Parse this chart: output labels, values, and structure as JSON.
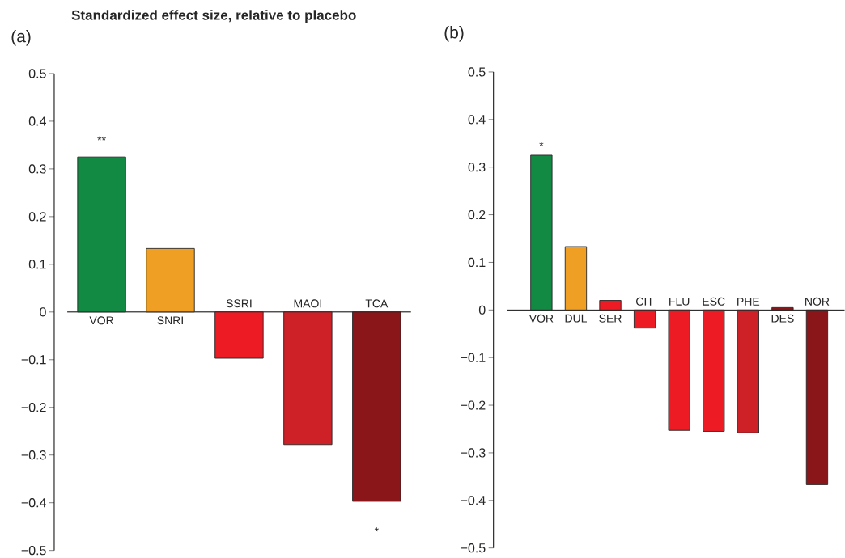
{
  "chart_data": [
    {
      "type": "bar",
      "title": "Standardized effect size, relative to placebo",
      "categories": [
        "VOR",
        "SNRI",
        "SSRI",
        "MAOI",
        "TCA"
      ],
      "values": [
        0.325,
        0.133,
        -0.097,
        -0.278,
        -0.397
      ],
      "colors": [
        "#138a43",
        "#ef9f23",
        "#ed1c24",
        "#cd2027",
        "#8b1619"
      ],
      "ylim": [
        -0.5,
        0.5
      ],
      "yticks": [
        {
          "value": -0.5,
          "label": "−0.5"
        },
        {
          "value": -0.4,
          "label": "−0.4"
        },
        {
          "value": -0.3,
          "label": "−0.3"
        },
        {
          "value": -0.2,
          "label": "−0.2"
        },
        {
          "value": -0.1,
          "label": "−0.1"
        },
        0,
        0.1,
        0.2,
        0.3,
        0.4,
        0.5
      ],
      "annotations": [
        "(a)",
        "**",
        "*"
      ]
    },
    {
      "type": "bar",
      "categories": [
        "VOR",
        "DUL",
        "SER",
        "CIT",
        "FLU",
        "ESC",
        "PHE",
        "DES",
        "NOR"
      ],
      "values": [
        0.325,
        0.133,
        0.02,
        -0.038,
        -0.253,
        -0.255,
        -0.258,
        0.005,
        -0.367
      ],
      "colors": [
        "#138a43",
        "#ef9f23",
        "#ed1c24",
        "#ed1c24",
        "#ed1c24",
        "#ed1c24",
        "#cd2027",
        "#8b1619",
        "#8b1619"
      ],
      "ylim": [
        -0.5,
        0.5
      ],
      "yticks": [
        {
          "value": -0.5,
          "label": "−0.5"
        },
        {
          "value": -0.4,
          "label": "−0.4"
        },
        {
          "value": -0.3,
          "label": "−0.3"
        },
        {
          "value": -0.2,
          "label": "−0.2"
        },
        {
          "value": -0.1,
          "label": "−0.1"
        },
        0,
        0.1,
        0.2,
        0.3,
        0.4,
        0.5
      ],
      "annotations": [
        "(b)",
        "*"
      ]
    }
  ]
}
